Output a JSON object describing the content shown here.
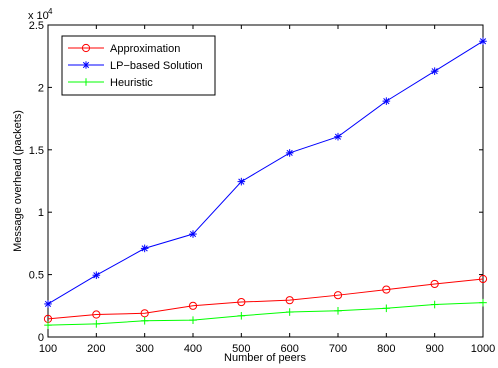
{
  "chart_data": {
    "type": "line",
    "title": "",
    "xlabel": "Number of peers",
    "ylabel": "Message overhead (packets)",
    "y_scale_note": "x 10",
    "y_scale_exponent": "4",
    "x": [
      100,
      200,
      300,
      400,
      500,
      600,
      700,
      800,
      900,
      1000
    ],
    "xlim": [
      100,
      1000
    ],
    "ylim": [
      0,
      25000
    ],
    "x_ticks": [
      "100",
      "200",
      "300",
      "400",
      "500",
      "600",
      "700",
      "800",
      "900",
      "1000"
    ],
    "y_ticks": [
      "0",
      "0.5",
      "1",
      "1.5",
      "2",
      "2.5"
    ],
    "y_tick_values": [
      0,
      5000,
      10000,
      15000,
      20000,
      25000
    ],
    "grid": false,
    "legend_position": "top-left",
    "series": [
      {
        "name": "Approximation",
        "color": "#ff0000",
        "marker": "circle",
        "values": [
          1450,
          1800,
          1900,
          2500,
          2800,
          2950,
          3350,
          3800,
          4250,
          4650
        ]
      },
      {
        "name": "LP−based Solution",
        "color": "#0000ff",
        "marker": "star",
        "values": [
          2650,
          4950,
          7100,
          8250,
          12450,
          14750,
          16050,
          18900,
          21300,
          23700
        ]
      },
      {
        "name": "Heuristic",
        "color": "#00ff00",
        "marker": "plus",
        "values": [
          950,
          1050,
          1300,
          1350,
          1700,
          2000,
          2100,
          2300,
          2600,
          2750
        ]
      }
    ]
  }
}
